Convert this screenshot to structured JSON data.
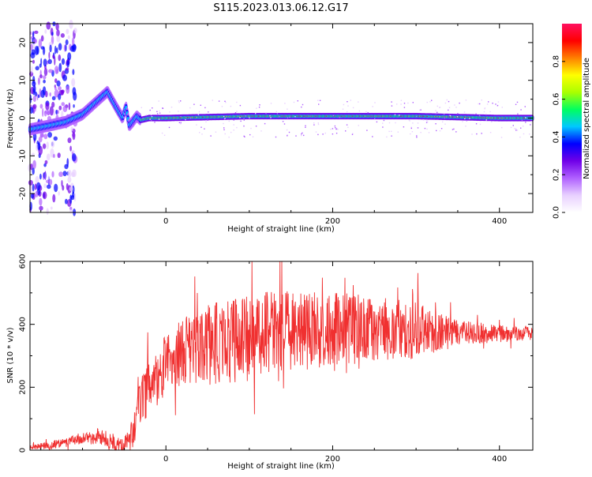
{
  "title": "S115.2023.013.06.12.G17",
  "chart_data": [
    {
      "type": "heatmap",
      "xlabel": "Height of straight line (km)",
      "ylabel": "Frequency (Hz)",
      "xlim": [
        -163,
        440
      ],
      "ylim": [
        -25,
        25
      ],
      "x_ticks": [
        0,
        200,
        400
      ],
      "y_ticks": [
        -20,
        -10,
        0,
        10,
        20
      ],
      "colorbar": {
        "label": "Normalized spectral amplitude",
        "range": [
          0,
          1
        ],
        "ticks": [
          0.0,
          0.2,
          0.4,
          0.6,
          0.8
        ],
        "colors": [
          "#ffffff",
          "#e8d0ff",
          "#b060ff",
          "#7000e8",
          "#0000ff",
          "#00c8ff",
          "#00ff60",
          "#aaff00",
          "#ffff00",
          "#ff8000",
          "#ff0000",
          "#ff1060"
        ]
      },
      "grid": false,
      "ridge": {
        "x": [
          -163,
          -140,
          -120,
          -100,
          -85,
          -70,
          -60,
          -52,
          -48,
          -44,
          -40,
          -35,
          -30,
          -20,
          0,
          100,
          200,
          300,
          400,
          440
        ],
        "y": [
          -3,
          -2,
          -1,
          1,
          4,
          7,
          3,
          0,
          3,
          -2,
          -1,
          0.5,
          -0.5,
          0,
          0,
          0.5,
          0.5,
          0.5,
          0,
          0
        ]
      }
    },
    {
      "type": "line",
      "xlabel": "Height of straight line (km)",
      "ylabel": "SNR (10 * v/v)",
      "xlim": [
        -163,
        440
      ],
      "ylim": [
        0,
        600
      ],
      "x_ticks": [
        0,
        200,
        400
      ],
      "y_ticks": [
        0,
        200,
        400,
        600
      ],
      "color": "#f03030",
      "envelope": {
        "x": [
          -163,
          -140,
          -120,
          -100,
          -80,
          -60,
          -45,
          -35,
          -28,
          -20,
          -10,
          0,
          20,
          40,
          60,
          80,
          100,
          150,
          200,
          250,
          300,
          350,
          400,
          440
        ],
        "y": [
          10,
          15,
          25,
          35,
          45,
          25,
          15,
          100,
          180,
          200,
          220,
          280,
          310,
          330,
          340,
          350,
          360,
          380,
          385,
          385,
          380,
          375,
          370,
          370
        ]
      },
      "spread": {
        "x": [
          -163,
          -100,
          -50,
          -30,
          0,
          50,
          100,
          200,
          300,
          350,
          440
        ],
        "y": [
          8,
          20,
          30,
          90,
          90,
          130,
          140,
          120,
          90,
          40,
          20
        ]
      }
    }
  ]
}
